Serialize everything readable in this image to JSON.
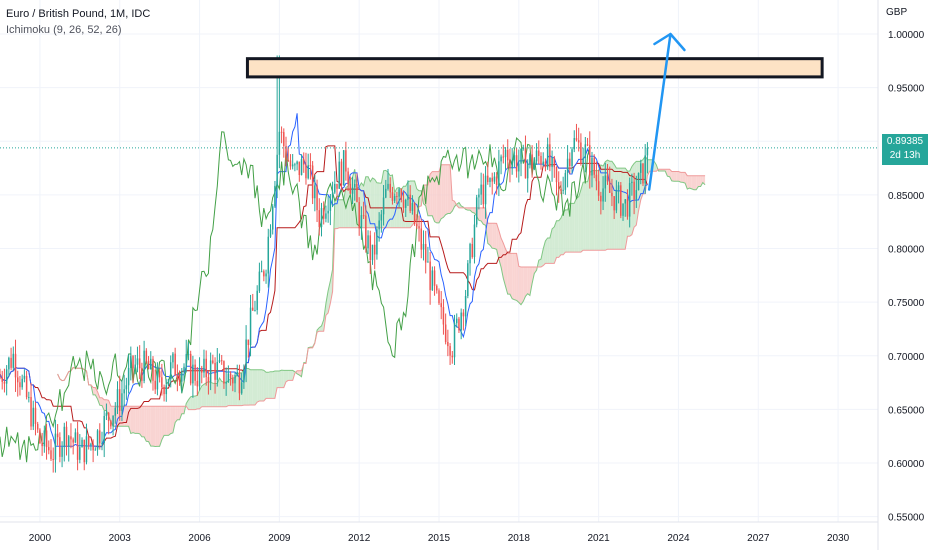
{
  "legend": {
    "symbol_line": "Euro / British Pound, 1M, IDC",
    "indicator_line": "Ichimoku (9, 26, 52, 26)"
  },
  "axis": {
    "currency": "GBP",
    "y_ticks": [
      "1.00000",
      "0.95000",
      "0.90000",
      "0.85000",
      "0.80000",
      "0.75000",
      "0.70000",
      "0.65000",
      "0.60000",
      "0.55000"
    ],
    "x_ticks": [
      "2000",
      "2003",
      "2006",
      "2009",
      "2012",
      "2015",
      "2018",
      "2021",
      "2024",
      "2027",
      "2030"
    ]
  },
  "last_price": {
    "value": "0.89385",
    "countdown": "2d 13h"
  },
  "colors": {
    "up": "#26a69a",
    "down": "#ef5350",
    "conversion": "#2962ff",
    "base": "#b71c1c",
    "lagging": "#43a047",
    "cloud_up": "#c8e6c9",
    "cloud_down": "#f8c9c7",
    "arrow": "#2196f3",
    "zone_fill": "#fde3c5",
    "zone_stroke": "#131722"
  },
  "chart_data": {
    "type": "candlestick",
    "title": "Euro / British Pound, 1M, IDC",
    "indicator": "Ichimoku (9, 26, 52, 26)",
    "ylim": [
      0.53,
      1.03
    ],
    "xlim": [
      1998.5,
      2031.5
    ],
    "close_path": [
      [
        1998.5,
        0.68
      ],
      [
        1999.0,
        0.7
      ],
      [
        1999.5,
        0.66
      ],
      [
        2000.0,
        0.62
      ],
      [
        2000.5,
        0.61
      ],
      [
        2001.0,
        0.63
      ],
      [
        2001.5,
        0.61
      ],
      [
        2002.0,
        0.62
      ],
      [
        2002.5,
        0.64
      ],
      [
        2003.0,
        0.66
      ],
      [
        2003.5,
        0.69
      ],
      [
        2004.0,
        0.69
      ],
      [
        2004.5,
        0.67
      ],
      [
        2005.0,
        0.69
      ],
      [
        2005.5,
        0.69
      ],
      [
        2006.0,
        0.68
      ],
      [
        2006.5,
        0.69
      ],
      [
        2007.0,
        0.68
      ],
      [
        2007.5,
        0.68
      ],
      [
        2008.0,
        0.74
      ],
      [
        2008.5,
        0.79
      ],
      [
        2009.0,
        0.91
      ],
      [
        2009.5,
        0.87
      ],
      [
        2010.0,
        0.88
      ],
      [
        2010.5,
        0.83
      ],
      [
        2011.0,
        0.86
      ],
      [
        2011.5,
        0.88
      ],
      [
        2012.0,
        0.83
      ],
      [
        2012.5,
        0.79
      ],
      [
        2013.0,
        0.85
      ],
      [
        2013.5,
        0.86
      ],
      [
        2014.0,
        0.83
      ],
      [
        2014.5,
        0.79
      ],
      [
        2015.0,
        0.74
      ],
      [
        2015.5,
        0.71
      ],
      [
        2016.0,
        0.76
      ],
      [
        2016.5,
        0.85
      ],
      [
        2017.0,
        0.86
      ],
      [
        2017.5,
        0.89
      ],
      [
        2018.0,
        0.88
      ],
      [
        2018.5,
        0.88
      ],
      [
        2019.0,
        0.89
      ],
      [
        2019.5,
        0.85
      ],
      [
        2020.0,
        0.9
      ],
      [
        2020.5,
        0.89
      ],
      [
        2021.0,
        0.86
      ],
      [
        2021.5,
        0.85
      ],
      [
        2022.0,
        0.84
      ],
      [
        2022.5,
        0.86
      ],
      [
        2022.9,
        0.89
      ]
    ],
    "resistance_zone": {
      "y_low": 0.96,
      "y_high": 0.977,
      "x_start": 2007.8,
      "x_end": 2029.4
    },
    "projection_arrow": {
      "from": [
        2022.9,
        0.855
      ],
      "to": [
        2023.7,
        1.0
      ]
    },
    "last_value": 0.89385
  }
}
